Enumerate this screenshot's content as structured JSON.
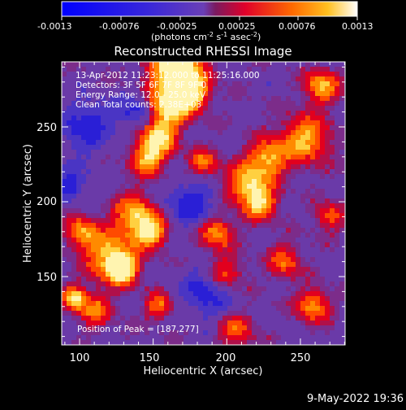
{
  "colorbar": {
    "tick_labels": [
      "-0.0013",
      "-0.00076",
      "-0.00025",
      "0.00025",
      "0.00076",
      "0.0013"
    ],
    "units_prefix": "(photons cm",
    "units_exp1": "-2",
    "units_mid": " s",
    "units_exp2": "-1",
    "units_mid2": " asec",
    "units_exp3": "-2",
    "units_suffix": ")"
  },
  "image": {
    "title": "Reconstructed RHESSI Image",
    "xlabel": "Heliocentric X (arcsec)",
    "ylabel": "Heliocentric Y (arcsec)",
    "x_ticks": [
      "100",
      "150",
      "200",
      "250"
    ],
    "y_ticks": [
      "150",
      "200",
      "250"
    ],
    "annotations": [
      "13-Apr-2012 11:23:12.000 to 11:25:16.000",
      "Detectors: 3F 5F 6F 7F 8F 9F 0",
      "Energy Range: 12.0 - 25.0 keV",
      "Clean    Total counts: 2.38E+03"
    ],
    "peak_label": "Position of Peak = [187,277]"
  },
  "timestamp": "9-May-2022 19:36",
  "colors": {
    "background": "#000000",
    "text": "#ffffff",
    "colormap_negative": [
      "#0000ff",
      "#4a2ccf",
      "#7a3fb0"
    ],
    "colormap_positive": [
      "#e1002a",
      "#ff4a00",
      "#ff9a00",
      "#ffe15a",
      "#ffffff"
    ]
  }
}
